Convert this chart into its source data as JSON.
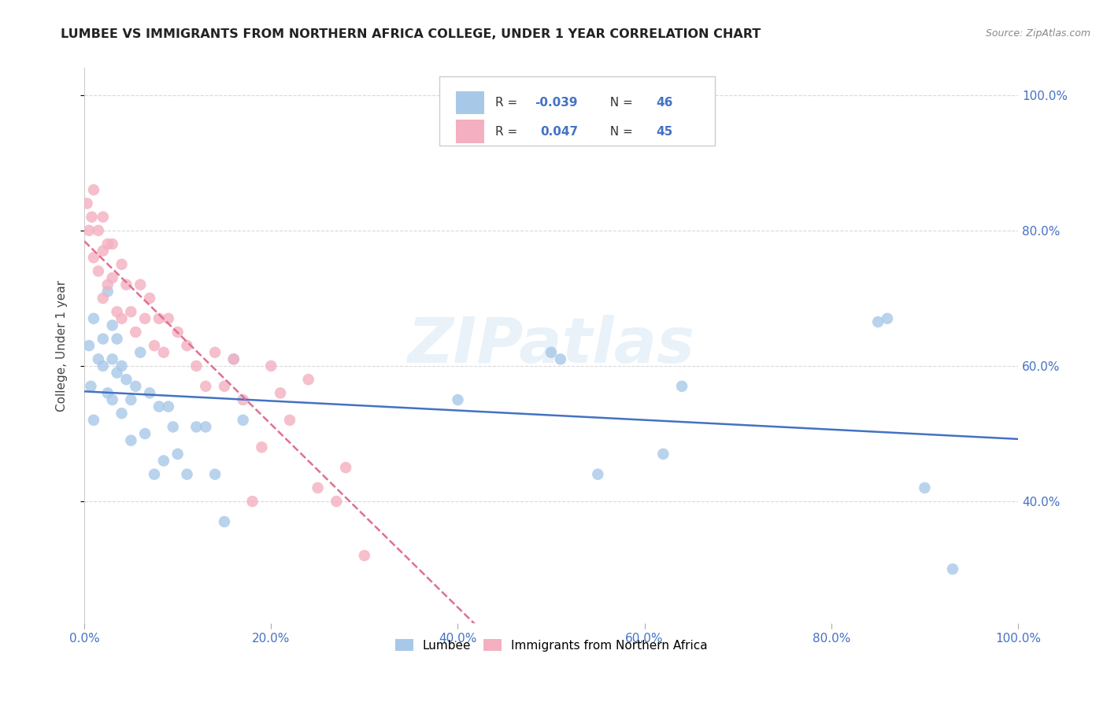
{
  "title": "LUMBEE VS IMMIGRANTS FROM NORTHERN AFRICA COLLEGE, UNDER 1 YEAR CORRELATION CHART",
  "source": "Source: ZipAtlas.com",
  "ylabel": "College, Under 1 year",
  "xlim": [
    0,
    1
  ],
  "ylim": [
    0.22,
    1.04
  ],
  "xtick_labels": [
    "0.0%",
    "20.0%",
    "40.0%",
    "60.0%",
    "80.0%",
    "100.0%"
  ],
  "xtick_vals": [
    0,
    0.2,
    0.4,
    0.6,
    0.8,
    1.0
  ],
  "ytick_labels": [
    "40.0%",
    "60.0%",
    "80.0%",
    "100.0%"
  ],
  "ytick_vals": [
    0.4,
    0.6,
    0.8,
    1.0
  ],
  "lumbee_R": "-0.039",
  "lumbee_N": "46",
  "imm_R": "0.047",
  "imm_N": "45",
  "lumbee_color": "#a8c8e8",
  "imm_color": "#f4afc0",
  "lumbee_line_color": "#4472c4",
  "imm_line_color": "#e07090",
  "background_color": "#ffffff",
  "watermark": "ZIPatlas",
  "lumbee_legend_color": "#a8c8e8",
  "imm_legend_color": "#f4afc0",
  "lumbee_x": [
    0.005,
    0.007,
    0.01,
    0.01,
    0.015,
    0.02,
    0.02,
    0.025,
    0.025,
    0.03,
    0.03,
    0.03,
    0.035,
    0.035,
    0.04,
    0.04,
    0.045,
    0.05,
    0.05,
    0.055,
    0.06,
    0.065,
    0.07,
    0.075,
    0.08,
    0.085,
    0.09,
    0.095,
    0.1,
    0.11,
    0.12,
    0.13,
    0.14,
    0.15,
    0.16,
    0.17,
    0.4,
    0.5,
    0.51,
    0.55,
    0.62,
    0.64,
    0.85,
    0.86,
    0.9,
    0.93
  ],
  "lumbee_y": [
    0.63,
    0.57,
    0.67,
    0.52,
    0.61,
    0.64,
    0.6,
    0.71,
    0.56,
    0.66,
    0.61,
    0.55,
    0.64,
    0.59,
    0.6,
    0.53,
    0.58,
    0.55,
    0.49,
    0.57,
    0.62,
    0.5,
    0.56,
    0.44,
    0.54,
    0.46,
    0.54,
    0.51,
    0.47,
    0.44,
    0.51,
    0.51,
    0.44,
    0.37,
    0.61,
    0.52,
    0.55,
    0.62,
    0.61,
    0.44,
    0.47,
    0.57,
    0.665,
    0.67,
    0.42,
    0.3
  ],
  "imm_x": [
    0.003,
    0.005,
    0.008,
    0.01,
    0.01,
    0.015,
    0.015,
    0.02,
    0.02,
    0.02,
    0.025,
    0.025,
    0.03,
    0.03,
    0.035,
    0.04,
    0.04,
    0.045,
    0.05,
    0.055,
    0.06,
    0.065,
    0.07,
    0.075,
    0.08,
    0.085,
    0.09,
    0.1,
    0.11,
    0.12,
    0.13,
    0.14,
    0.15,
    0.16,
    0.18,
    0.2,
    0.22,
    0.24,
    0.25,
    0.27,
    0.28,
    0.3,
    0.17,
    0.19,
    0.21
  ],
  "imm_y": [
    0.84,
    0.8,
    0.82,
    0.86,
    0.76,
    0.8,
    0.74,
    0.82,
    0.77,
    0.7,
    0.78,
    0.72,
    0.78,
    0.73,
    0.68,
    0.75,
    0.67,
    0.72,
    0.68,
    0.65,
    0.72,
    0.67,
    0.7,
    0.63,
    0.67,
    0.62,
    0.67,
    0.65,
    0.63,
    0.6,
    0.57,
    0.62,
    0.57,
    0.61,
    0.4,
    0.6,
    0.52,
    0.58,
    0.42,
    0.4,
    0.45,
    0.32,
    0.55,
    0.48,
    0.56
  ],
  "grid_color": "#d0d0d0"
}
